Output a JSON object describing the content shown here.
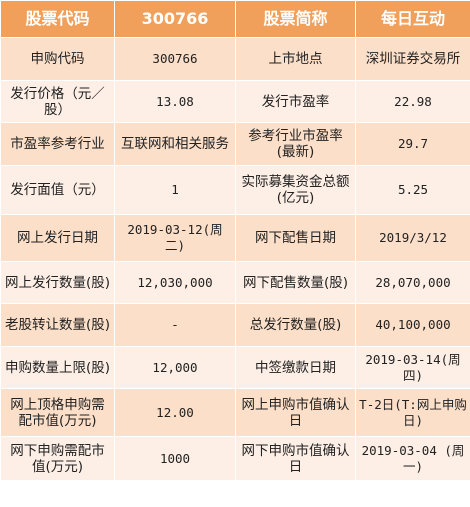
{
  "header": [
    "股票代码",
    "300766",
    "股票简称",
    "每日互动"
  ],
  "rows": [
    [
      "申购代码",
      "300766",
      "上市地点",
      "深圳证券交易所"
    ],
    [
      "发行价格（元／股）",
      "13.08",
      "发行市盈率",
      "22.98"
    ],
    [
      "市盈率参考行业",
      "互联网和相关服务",
      "参考行业市盈率(最新)",
      "29.7"
    ],
    [
      "发行面值（元）",
      "1",
      "实际募集资金总额(亿元)",
      "5.25"
    ],
    [
      "网上发行日期",
      "2019-03-12(周二)",
      "网下配售日期",
      "2019/3/12"
    ],
    [
      "网上发行数量(股)",
      "12,030,000",
      "网下配售数量(股)",
      "28,070,000"
    ],
    [
      "老股转让数量(股)",
      "-",
      "总发行数量(股)",
      "40,100,000"
    ],
    [
      "申购数量上限(股)",
      "12,000",
      "中签缴款日期",
      "2019-03-14(周四)"
    ],
    [
      "网上顶格申购需配市值(万元)",
      "12.00",
      "网上申购市值确认日",
      "T-2日(T:网上申购日)"
    ],
    [
      "网下申购需配市值(万元)",
      "1000",
      "网下申购市值确认日",
      "2019-03-04 (周一)"
    ]
  ]
}
